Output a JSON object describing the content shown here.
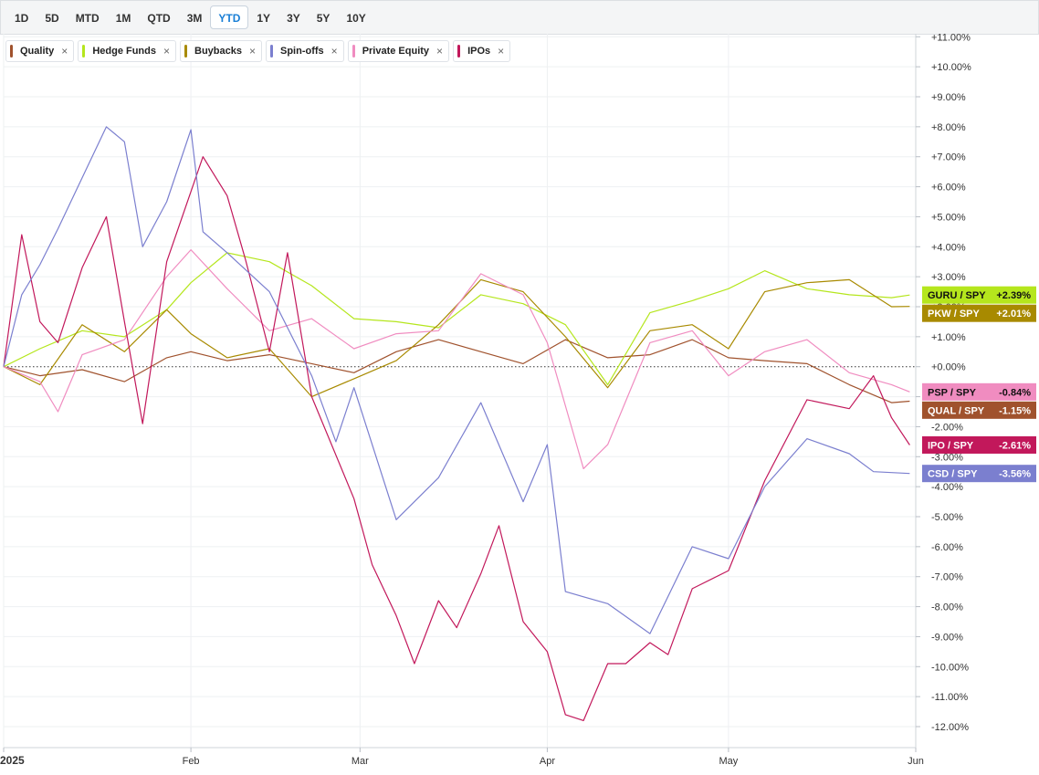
{
  "toolbar": {
    "ranges": [
      "1D",
      "5D",
      "MTD",
      "1M",
      "QTD",
      "3M",
      "YTD",
      "1Y",
      "3Y",
      "5Y",
      "10Y"
    ],
    "active_range": "YTD"
  },
  "legend": [
    {
      "label": "Quality",
      "color": "#a0522d"
    },
    {
      "label": "Hedge Funds",
      "color": "#b5e61d"
    },
    {
      "label": "Buybacks",
      "color": "#a88a00"
    },
    {
      "label": "Spin-offs",
      "color": "#7b7fcf"
    },
    {
      "label": "Private Equity",
      "color": "#f08cc0"
    },
    {
      "label": "IPOs",
      "color": "#c2185b"
    }
  ],
  "chart_data": {
    "type": "line",
    "x_ticks": [
      "2025",
      "Feb",
      "Mar",
      "Apr",
      "May",
      "Jun"
    ],
    "y_tick_labels": [
      "+11.00%",
      "+10.00%",
      "+9.00%",
      "+8.00%",
      "+7.00%",
      "+6.00%",
      "+5.00%",
      "+4.00%",
      "+3.00%",
      "+2.00%",
      "+1.00%",
      "+0.00%",
      "-1.00%",
      "-2.00%",
      "-3.00%",
      "-4.00%",
      "-5.00%",
      "-6.00%",
      "-7.00%",
      "-8.00%",
      "-9.00%",
      "-10.00%",
      "-11.00%",
      "-12.00%"
    ],
    "y_ticks": [
      11,
      10,
      9,
      8,
      7,
      6,
      5,
      4,
      3,
      2,
      1,
      0,
      -1,
      -2,
      -3,
      -4,
      -5,
      -6,
      -7,
      -8,
      -9,
      -10,
      -11,
      -12
    ],
    "ylim": [
      -12.7,
      11.1
    ],
    "xlim": [
      "2025-01-01",
      "2025-06-01"
    ],
    "baseline": 0,
    "series": [
      {
        "name": "Quality",
        "tag": "QUAL / SPY",
        "last_label": "-1.15%",
        "last": -1.15,
        "color": "#a0522d",
        "points": [
          [
            "2025-01-01",
            0
          ],
          [
            "2025-01-07",
            -0.3
          ],
          [
            "2025-01-14",
            -0.1
          ],
          [
            "2025-01-21",
            -0.5
          ],
          [
            "2025-01-28",
            0.3
          ],
          [
            "2025-02-01",
            0.5
          ],
          [
            "2025-02-07",
            0.2
          ],
          [
            "2025-02-14",
            0.4
          ],
          [
            "2025-02-21",
            0.1
          ],
          [
            "2025-02-28",
            -0.2
          ],
          [
            "2025-03-07",
            0.5
          ],
          [
            "2025-03-14",
            0.9
          ],
          [
            "2025-03-21",
            0.5
          ],
          [
            "2025-03-28",
            0.1
          ],
          [
            "2025-04-04",
            0.9
          ],
          [
            "2025-04-11",
            0.3
          ],
          [
            "2025-04-18",
            0.4
          ],
          [
            "2025-04-25",
            0.9
          ],
          [
            "2025-05-01",
            0.3
          ],
          [
            "2025-05-07",
            0.2
          ],
          [
            "2025-05-14",
            0.1
          ],
          [
            "2025-05-21",
            -0.6
          ],
          [
            "2025-05-28",
            -1.2
          ],
          [
            "2025-05-31",
            -1.15
          ]
        ]
      },
      {
        "name": "Hedge Funds",
        "tag": "GURU / SPY",
        "last_label": "+2.39%",
        "last": 2.39,
        "color": "#b5e61d",
        "points": [
          [
            "2025-01-01",
            0
          ],
          [
            "2025-01-07",
            0.6
          ],
          [
            "2025-01-14",
            1.2
          ],
          [
            "2025-01-21",
            1.0
          ],
          [
            "2025-01-28",
            1.9
          ],
          [
            "2025-02-01",
            2.8
          ],
          [
            "2025-02-07",
            3.8
          ],
          [
            "2025-02-14",
            3.5
          ],
          [
            "2025-02-21",
            2.7
          ],
          [
            "2025-02-28",
            1.6
          ],
          [
            "2025-03-07",
            1.5
          ],
          [
            "2025-03-14",
            1.3
          ],
          [
            "2025-03-21",
            2.4
          ],
          [
            "2025-03-28",
            2.1
          ],
          [
            "2025-04-04",
            1.4
          ],
          [
            "2025-04-11",
            -0.6
          ],
          [
            "2025-04-18",
            1.8
          ],
          [
            "2025-04-25",
            2.2
          ],
          [
            "2025-05-01",
            2.6
          ],
          [
            "2025-05-07",
            3.2
          ],
          [
            "2025-05-14",
            2.6
          ],
          [
            "2025-05-21",
            2.4
          ],
          [
            "2025-05-28",
            2.3
          ],
          [
            "2025-05-31",
            2.39
          ]
        ]
      },
      {
        "name": "Buybacks",
        "tag": "PKW / SPY",
        "last_label": "+2.01%",
        "last": 2.01,
        "color": "#a88a00",
        "points": [
          [
            "2025-01-01",
            0
          ],
          [
            "2025-01-07",
            -0.6
          ],
          [
            "2025-01-14",
            1.4
          ],
          [
            "2025-01-21",
            0.5
          ],
          [
            "2025-01-28",
            1.9
          ],
          [
            "2025-02-01",
            1.1
          ],
          [
            "2025-02-07",
            0.3
          ],
          [
            "2025-02-14",
            0.6
          ],
          [
            "2025-02-21",
            -1.0
          ],
          [
            "2025-02-28",
            -0.4
          ],
          [
            "2025-03-07",
            0.2
          ],
          [
            "2025-03-14",
            1.4
          ],
          [
            "2025-03-21",
            2.9
          ],
          [
            "2025-03-28",
            2.5
          ],
          [
            "2025-04-04",
            1.0
          ],
          [
            "2025-04-11",
            -0.7
          ],
          [
            "2025-04-18",
            1.2
          ],
          [
            "2025-04-25",
            1.4
          ],
          [
            "2025-05-01",
            0.6
          ],
          [
            "2025-05-07",
            2.5
          ],
          [
            "2025-05-14",
            2.8
          ],
          [
            "2025-05-21",
            2.9
          ],
          [
            "2025-05-28",
            2.0
          ],
          [
            "2025-05-31",
            2.01
          ]
        ]
      },
      {
        "name": "Private Equity",
        "tag": "PSP / SPY",
        "last_label": "-0.84%",
        "last": -0.84,
        "color": "#f08cc0",
        "points": [
          [
            "2025-01-01",
            0
          ],
          [
            "2025-01-07",
            -0.5
          ],
          [
            "2025-01-10",
            -1.5
          ],
          [
            "2025-01-14",
            0.4
          ],
          [
            "2025-01-21",
            0.9
          ],
          [
            "2025-01-28",
            3.0
          ],
          [
            "2025-02-01",
            3.9
          ],
          [
            "2025-02-07",
            2.6
          ],
          [
            "2025-02-14",
            1.2
          ],
          [
            "2025-02-21",
            1.6
          ],
          [
            "2025-02-28",
            0.6
          ],
          [
            "2025-03-07",
            1.1
          ],
          [
            "2025-03-14",
            1.2
          ],
          [
            "2025-03-21",
            3.1
          ],
          [
            "2025-03-28",
            2.4
          ],
          [
            "2025-04-01",
            0.8
          ],
          [
            "2025-04-07",
            -3.4
          ],
          [
            "2025-04-11",
            -2.6
          ],
          [
            "2025-04-18",
            0.8
          ],
          [
            "2025-04-25",
            1.2
          ],
          [
            "2025-05-01",
            -0.3
          ],
          [
            "2025-05-07",
            0.5
          ],
          [
            "2025-05-14",
            0.9
          ],
          [
            "2025-05-21",
            -0.2
          ],
          [
            "2025-05-28",
            -0.6
          ],
          [
            "2025-05-31",
            -0.84
          ]
        ]
      },
      {
        "name": "IPOs",
        "tag": "IPO / SPY",
        "last_label": "-2.61%",
        "last": -2.61,
        "color": "#c2185b",
        "points": [
          [
            "2025-01-01",
            0
          ],
          [
            "2025-01-04",
            4.4
          ],
          [
            "2025-01-07",
            1.5
          ],
          [
            "2025-01-10",
            0.8
          ],
          [
            "2025-01-14",
            3.3
          ],
          [
            "2025-01-18",
            5.0
          ],
          [
            "2025-01-21",
            1.5
          ],
          [
            "2025-01-24",
            -1.9
          ],
          [
            "2025-01-28",
            3.5
          ],
          [
            "2025-02-03",
            7.0
          ],
          [
            "2025-02-07",
            5.7
          ],
          [
            "2025-02-10",
            3.6
          ],
          [
            "2025-02-14",
            0.5
          ],
          [
            "2025-02-17",
            3.8
          ],
          [
            "2025-02-21",
            -1.0
          ],
          [
            "2025-02-28",
            -4.4
          ],
          [
            "2025-03-03",
            -6.6
          ],
          [
            "2025-03-07",
            -8.3
          ],
          [
            "2025-03-10",
            -9.9
          ],
          [
            "2025-03-14",
            -7.8
          ],
          [
            "2025-03-17",
            -8.7
          ],
          [
            "2025-03-21",
            -6.9
          ],
          [
            "2025-03-24",
            -5.3
          ],
          [
            "2025-03-28",
            -8.5
          ],
          [
            "2025-04-01",
            -9.5
          ],
          [
            "2025-04-04",
            -11.6
          ],
          [
            "2025-04-07",
            -11.8
          ],
          [
            "2025-04-11",
            -9.9
          ],
          [
            "2025-04-14",
            -9.9
          ],
          [
            "2025-04-18",
            -9.2
          ],
          [
            "2025-04-21",
            -9.6
          ],
          [
            "2025-04-25",
            -7.4
          ],
          [
            "2025-05-01",
            -6.8
          ],
          [
            "2025-05-07",
            -3.8
          ],
          [
            "2025-05-14",
            -1.1
          ],
          [
            "2025-05-21",
            -1.4
          ],
          [
            "2025-05-25",
            -0.3
          ],
          [
            "2025-05-28",
            -1.7
          ],
          [
            "2025-05-31",
            -2.61
          ]
        ]
      },
      {
        "name": "Spin-offs",
        "tag": "CSD / SPY",
        "last_label": "-3.56%",
        "last": -3.56,
        "color": "#7b7fcf",
        "points": [
          [
            "2025-01-01",
            0
          ],
          [
            "2025-01-04",
            2.4
          ],
          [
            "2025-01-07",
            3.4
          ],
          [
            "2025-01-10",
            4.6
          ],
          [
            "2025-01-14",
            6.3
          ],
          [
            "2025-01-18",
            8.0
          ],
          [
            "2025-01-21",
            7.5
          ],
          [
            "2025-01-24",
            4.0
          ],
          [
            "2025-01-28",
            5.5
          ],
          [
            "2025-02-01",
            7.9
          ],
          [
            "2025-02-03",
            4.5
          ],
          [
            "2025-02-07",
            3.8
          ],
          [
            "2025-02-14",
            2.5
          ],
          [
            "2025-02-21",
            -0.3
          ],
          [
            "2025-02-25",
            -2.5
          ],
          [
            "2025-02-28",
            -0.7
          ],
          [
            "2025-03-07",
            -5.1
          ],
          [
            "2025-03-14",
            -3.7
          ],
          [
            "2025-03-21",
            -1.2
          ],
          [
            "2025-03-28",
            -4.5
          ],
          [
            "2025-04-01",
            -2.6
          ],
          [
            "2025-04-04",
            -7.5
          ],
          [
            "2025-04-11",
            -7.9
          ],
          [
            "2025-04-18",
            -8.9
          ],
          [
            "2025-04-25",
            -6.0
          ],
          [
            "2025-05-01",
            -6.4
          ],
          [
            "2025-05-07",
            -4.0
          ],
          [
            "2025-05-14",
            -2.4
          ],
          [
            "2025-05-21",
            -2.9
          ],
          [
            "2025-05-25",
            -3.5
          ],
          [
            "2025-05-31",
            -3.56
          ]
        ]
      }
    ]
  }
}
